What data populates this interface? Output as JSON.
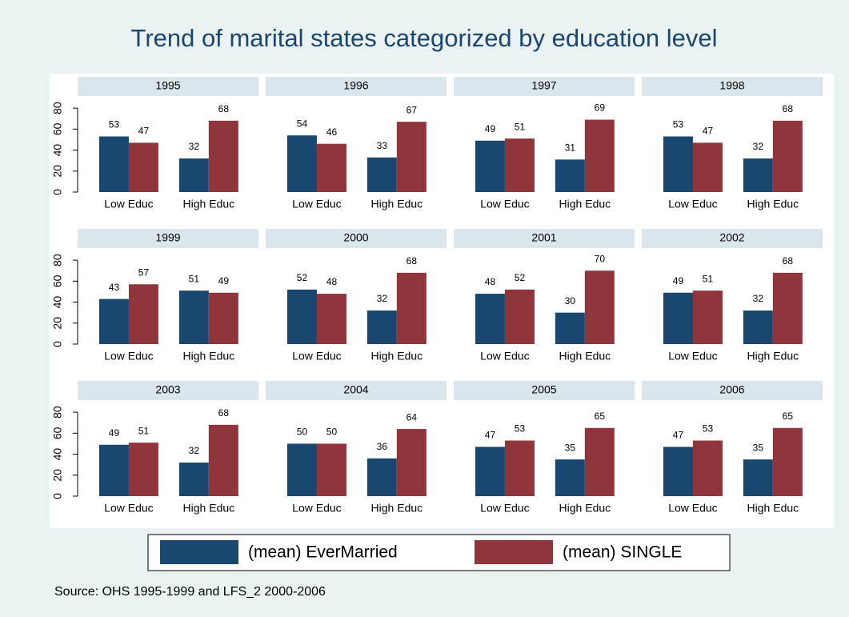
{
  "title": "Trend of marital states categorized by education level",
  "note": "Source: OHS 1995-1999 and LFS_2 2000-2006",
  "legend": {
    "entries": [
      {
        "name": "(mean) EverMarried",
        "color": "#1a476f"
      },
      {
        "name": "(mean) SINGLE",
        "color": "#90353b"
      }
    ]
  },
  "ylim": [
    0,
    90
  ],
  "yticks": [
    0,
    20,
    40,
    60,
    80
  ],
  "chart_data": [
    {
      "type": "bar",
      "title": "1995",
      "categories": [
        "Low Educ",
        "High Educ"
      ],
      "series": [
        {
          "values": [
            53,
            32
          ]
        },
        {
          "values": [
            47,
            68
          ]
        }
      ]
    },
    {
      "type": "bar",
      "title": "1996",
      "categories": [
        "Low Educ",
        "High Educ"
      ],
      "series": [
        {
          "values": [
            54,
            33
          ]
        },
        {
          "values": [
            46,
            67
          ]
        }
      ]
    },
    {
      "type": "bar",
      "title": "1997",
      "categories": [
        "Low Educ",
        "High Educ"
      ],
      "series": [
        {
          "values": [
            49,
            31
          ]
        },
        {
          "values": [
            51,
            69
          ]
        }
      ]
    },
    {
      "type": "bar",
      "title": "1998",
      "categories": [
        "Low Educ",
        "High Educ"
      ],
      "series": [
        {
          "values": [
            53,
            32
          ]
        },
        {
          "values": [
            47,
            68
          ]
        }
      ]
    },
    {
      "type": "bar",
      "title": "1999",
      "categories": [
        "Low Educ",
        "High Educ"
      ],
      "series": [
        {
          "values": [
            43,
            51
          ]
        },
        {
          "values": [
            57,
            49
          ]
        }
      ]
    },
    {
      "type": "bar",
      "title": "2000",
      "categories": [
        "Low Educ",
        "High Educ"
      ],
      "series": [
        {
          "values": [
            52,
            32
          ]
        },
        {
          "values": [
            48,
            68
          ]
        }
      ]
    },
    {
      "type": "bar",
      "title": "2001",
      "categories": [
        "Low Educ",
        "High Educ"
      ],
      "series": [
        {
          "values": [
            48,
            30
          ]
        },
        {
          "values": [
            52,
            70
          ]
        }
      ]
    },
    {
      "type": "bar",
      "title": "2002",
      "categories": [
        "Low Educ",
        "High Educ"
      ],
      "series": [
        {
          "values": [
            49,
            32
          ]
        },
        {
          "values": [
            51,
            68
          ]
        }
      ]
    },
    {
      "type": "bar",
      "title": "2003",
      "categories": [
        "Low Educ",
        "High Educ"
      ],
      "series": [
        {
          "values": [
            49,
            32
          ]
        },
        {
          "values": [
            51,
            68
          ]
        }
      ]
    },
    {
      "type": "bar",
      "title": "2004",
      "categories": [
        "Low Educ",
        "High Educ"
      ],
      "series": [
        {
          "values": [
            50,
            36
          ]
        },
        {
          "values": [
            50,
            64
          ]
        }
      ]
    },
    {
      "type": "bar",
      "title": "2005",
      "categories": [
        "Low Educ",
        "High Educ"
      ],
      "series": [
        {
          "values": [
            47,
            35
          ]
        },
        {
          "values": [
            53,
            65
          ]
        }
      ]
    },
    {
      "type": "bar",
      "title": "2006",
      "categories": [
        "Low Educ",
        "High Educ"
      ],
      "series": [
        {
          "values": [
            47,
            35
          ]
        },
        {
          "values": [
            53,
            65
          ]
        }
      ]
    }
  ]
}
